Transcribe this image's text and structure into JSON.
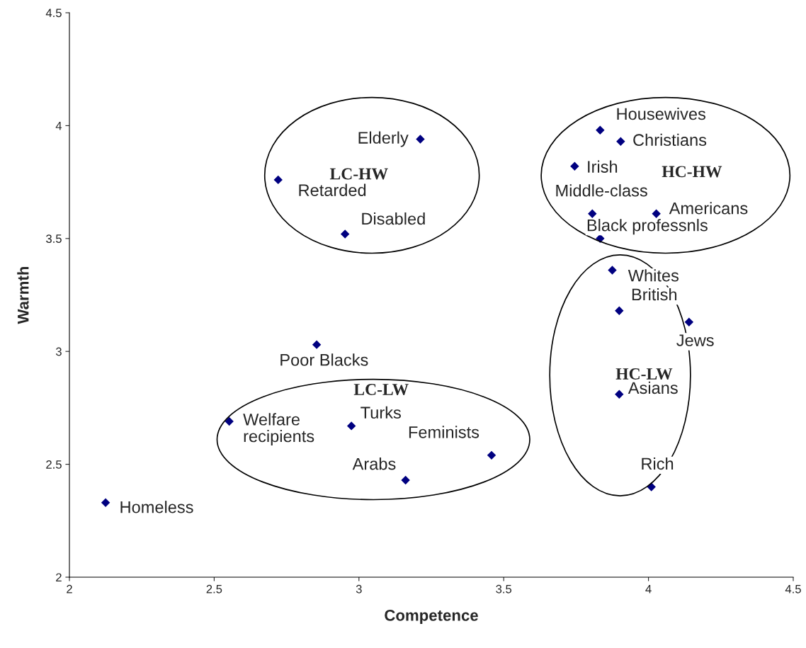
{
  "chart_data": {
    "type": "scatter",
    "xlabel": "Competence",
    "ylabel": "Warmth",
    "x": [
      2.125,
      2.552,
      2.854,
      2.974,
      3.161,
      3.458,
      2.721,
      2.952,
      3.212,
      3.833,
      3.904,
      3.745,
      3.806,
      4.027,
      3.833,
      3.875,
      3.899,
      4.14,
      3.899,
      4.01
    ],
    "values": [
      2.33,
      2.69,
      3.03,
      2.67,
      2.43,
      2.54,
      3.76,
      3.52,
      3.94,
      3.98,
      3.93,
      3.82,
      3.61,
      3.61,
      3.5,
      3.36,
      3.18,
      3.13,
      2.81,
      2.4
    ],
    "color": "#000080",
    "marker": "diamond",
    "grid": false,
    "xlim": [
      2,
      4.5
    ],
    "xticks": [
      2,
      2.5,
      3,
      3.5,
      4,
      4.5
    ],
    "ylim": [
      2,
      4.5
    ],
    "yticks": [
      2,
      2.5,
      3,
      3.5,
      4,
      4.5
    ],
    "annotations": [
      {
        "text": "Homeless",
        "x": 2.125,
        "y": 2.33
      },
      {
        "text": "Welfare\nrecipients",
        "x": 2.552,
        "y": 2.69
      },
      {
        "text": "Poor Blacks",
        "x": 2.854,
        "y": 3.03
      },
      {
        "text": "Turks",
        "x": 2.974,
        "y": 2.67
      },
      {
        "text": "Arabs",
        "x": 3.161,
        "y": 2.43
      },
      {
        "text": "Feminists",
        "x": 3.458,
        "y": 2.54
      },
      {
        "text": "Retarded",
        "x": 2.721,
        "y": 3.76
      },
      {
        "text": "Disabled",
        "x": 2.952,
        "y": 3.52
      },
      {
        "text": "Elderly",
        "x": 3.212,
        "y": 3.94
      },
      {
        "text": "Housewives",
        "x": 3.833,
        "y": 3.98
      },
      {
        "text": "Christians",
        "x": 3.904,
        "y": 3.93
      },
      {
        "text": "Irish",
        "x": 3.745,
        "y": 3.82
      },
      {
        "text": "Middle-class",
        "x": 3.806,
        "y": 3.61
      },
      {
        "text": "Americans",
        "x": 4.027,
        "y": 3.61
      },
      {
        "text": "Black professnls",
        "x": 3.833,
        "y": 3.5
      },
      {
        "text": "Whites",
        "x": 3.875,
        "y": 3.36
      },
      {
        "text": "British",
        "x": 3.899,
        "y": 3.18
      },
      {
        "text": "Jews",
        "x": 4.14,
        "y": 3.13
      },
      {
        "text": "Asians",
        "x": 3.899,
        "y": 2.81
      },
      {
        "text": "Rich",
        "x": 4.01,
        "y": 2.4
      },
      "LC-HW",
      "HC-HW",
      "LC-LW",
      "HC-LW"
    ]
  }
}
